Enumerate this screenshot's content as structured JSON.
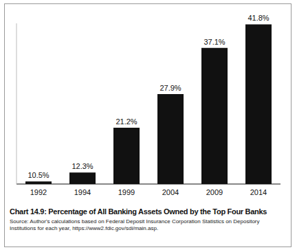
{
  "chart_data": {
    "type": "bar",
    "title": "Chart 14.9: Percentage of All Banking Assets Owned by the Top Four Banks",
    "annotations": [
      "Source: Author's calculations based on Federal Deposit Insurance Corporation Statistics on Depository Institutions for each year, https://www2.fdic.gov/sdi/main.asp."
    ],
    "categories": [
      "1992",
      "1994",
      "1999",
      "2004",
      "2009",
      "2014"
    ],
    "values": [
      10.5,
      12.3,
      21.2,
      27.9,
      37.1,
      41.8
    ],
    "value_labels": [
      "10.5%",
      "12.3%",
      "21.2%",
      "27.9%",
      "37.1%",
      "41.8%"
    ],
    "color": "#111111",
    "ylim": [
      10,
      42
    ],
    "data_labels": true,
    "tick_labels": "x",
    "grid": false
  }
}
